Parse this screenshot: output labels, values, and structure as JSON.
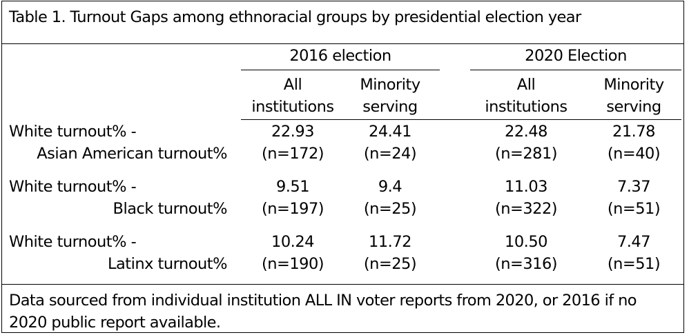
{
  "title": "Table 1. Turnout Gaps among ethnoracial groups by presidential election year",
  "groups": {
    "g2016": "2016 election",
    "g2020": "2020 Election"
  },
  "subheaders": {
    "all_line1": "All",
    "all_line2": "institutions",
    "min_line1": "Minority",
    "min_line2": "serving"
  },
  "rows": [
    {
      "label_line1": "White turnout% -",
      "label_line2": "Asian American turnout%",
      "values": [
        "22.93",
        "24.41",
        "22.48",
        "21.78"
      ],
      "ns": [
        "(n=172)",
        "(n=24)",
        "(n=281)",
        "(n=40)"
      ]
    },
    {
      "label_line1": "White turnout% -",
      "label_line2": "Black turnout%",
      "values": [
        "9.51",
        "9.4",
        "11.03",
        "7.37"
      ],
      "ns": [
        "(n=197)",
        "(n=25)",
        "(n=322)",
        "(n=51)"
      ]
    },
    {
      "label_line1": "White turnout% -",
      "label_line2": "Latinx turnout%",
      "values": [
        "10.24",
        "11.72",
        "10.50",
        "7.47"
      ],
      "ns": [
        "(n=190)",
        "(n=25)",
        "(n=316)",
        "(n=51)"
      ]
    }
  ],
  "note": "Data sourced from individual institution ALL IN voter reports from 2020, or 2016 if no 2020 public report available."
}
